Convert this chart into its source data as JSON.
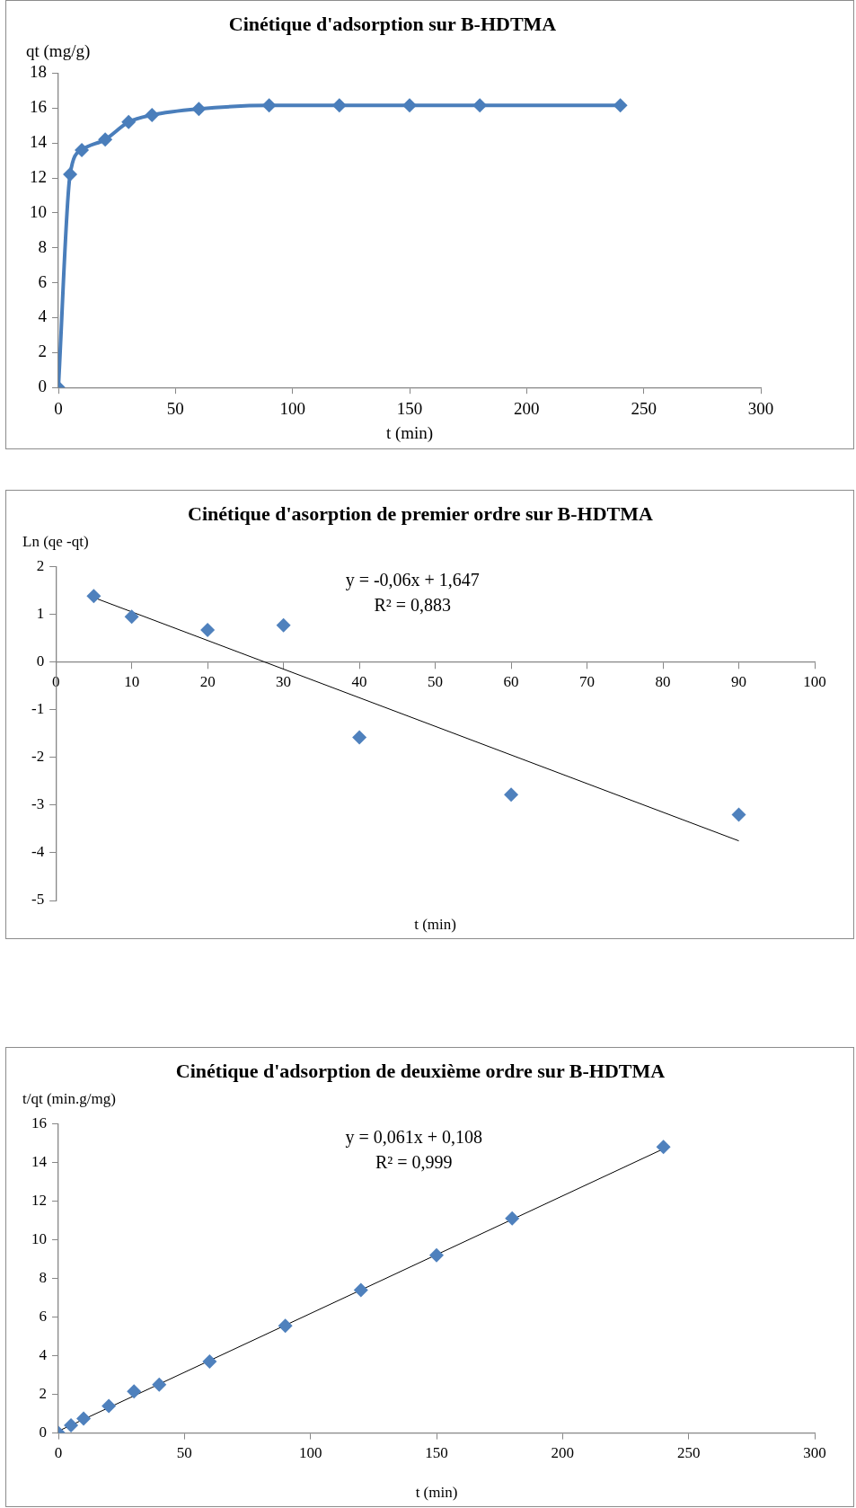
{
  "chart_data": [
    {
      "type": "line",
      "title": "Cinétique d'adsorption sur B-HDTMA",
      "xlabel": "t (min)",
      "ylabel": "qt (mg/g)",
      "x": [
        0,
        5,
        10,
        20,
        30,
        40,
        60,
        90,
        120,
        150,
        180,
        240
      ],
      "series": [
        {
          "color": "#4a7ebb",
          "values": [
            0,
            12.2,
            13.6,
            14.2,
            15.2,
            15.6,
            15.95,
            16.15,
            16.15,
            16.15,
            16.15,
            16.15
          ]
        }
      ],
      "xlim": [
        0,
        300
      ],
      "xticks": [
        0,
        50,
        100,
        150,
        200,
        250,
        300
      ],
      "ylim": [
        0,
        18
      ],
      "yticks": [
        0,
        2,
        4,
        6,
        8,
        10,
        12,
        14,
        16,
        18
      ],
      "grid": false,
      "legend": false,
      "marker": "diamond",
      "line_style": "solid"
    },
    {
      "type": "scatter",
      "title": "Cinétique d'asorption de premier ordre sur B-HDTMA",
      "xlabel": "t (min)",
      "ylabel": "Ln (qe -qt)",
      "annotations": [
        "y = -0,06x + 1,647",
        "R² = 0,883"
      ],
      "series": [
        {
          "color": "#4f81bd",
          "x": [
            5,
            10,
            20,
            30,
            40,
            60,
            90
          ],
          "values": [
            1.38,
            0.95,
            0.67,
            0.77,
            -1.58,
            -2.78,
            -3.2
          ],
          "marker": "diamond"
        },
        {
          "type": "line",
          "color": "#000000",
          "x": [
            5,
            90
          ],
          "values": [
            1.35,
            -3.75
          ],
          "marker": "none"
        }
      ],
      "xlim": [
        0,
        100
      ],
      "xticks": [
        0,
        10,
        20,
        30,
        40,
        50,
        60,
        70,
        80,
        90,
        100
      ],
      "ylim": [
        -5,
        2
      ],
      "yticks": [
        -5,
        -4,
        -3,
        -2,
        -1,
        0,
        1,
        2
      ],
      "grid": false,
      "legend": false
    },
    {
      "type": "scatter",
      "title": "Cinétique d'adsorption de deuxième ordre sur B-HDTMA",
      "xlabel": "t (min)",
      "ylabel": "t/qt (min.g/mg)",
      "annotations": [
        "y = 0,061x + 0,108",
        "R² = 0,999"
      ],
      "series": [
        {
          "color": "#4f81bd",
          "x": [
            0,
            5,
            10,
            20,
            30,
            40,
            60,
            90,
            120,
            150,
            180,
            240
          ],
          "values": [
            0,
            0.4,
            0.75,
            1.4,
            2.15,
            2.5,
            3.7,
            5.55,
            7.4,
            9.2,
            11.1,
            14.8
          ],
          "marker": "diamond"
        },
        {
          "type": "line",
          "color": "#000000",
          "x": [
            0,
            240
          ],
          "values": [
            0.1,
            14.7
          ],
          "marker": "none"
        }
      ],
      "xlim": [
        0,
        300
      ],
      "xticks": [
        0,
        50,
        100,
        150,
        200,
        250,
        300
      ],
      "ylim": [
        0,
        16
      ],
      "yticks": [
        0,
        2,
        4,
        6,
        8,
        10,
        12,
        14,
        16
      ],
      "grid": false,
      "legend": false
    }
  ]
}
